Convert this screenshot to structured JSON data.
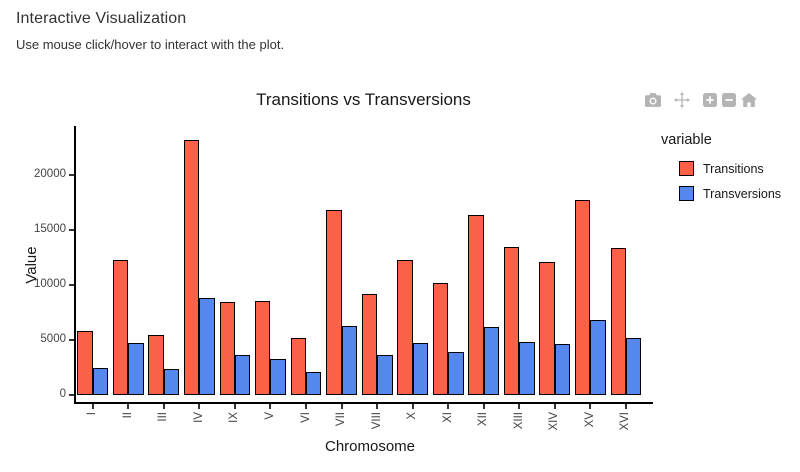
{
  "page": {
    "title": "Interactive Visualization",
    "subtitle": "Use mouse click/hover to interact with the plot."
  },
  "toolbar": {
    "buttons": [
      {
        "icon": "camera-icon",
        "action": "download-plot-as-png"
      },
      {
        "icon": "pan-icon",
        "action": "pan"
      },
      {
        "icon": "zoom-in-icon",
        "action": "zoom-in"
      },
      {
        "icon": "zoom-out-icon",
        "action": "zoom-out"
      },
      {
        "icon": "home-icon",
        "action": "reset-axes"
      }
    ]
  },
  "chart_data": {
    "type": "bar",
    "title": "Transitions vs Transversions",
    "xlabel": "Chromosome",
    "ylabel": "Value",
    "legend_title": "variable",
    "legend_position": "right",
    "grid": false,
    "bar_border_color": "#000000",
    "categories": [
      "I",
      "II",
      "III",
      "IV",
      "IX",
      "V",
      "VI",
      "VII",
      "VIII",
      "X",
      "XI",
      "XII",
      "XIII",
      "XIV",
      "XV",
      "XVI"
    ],
    "series": [
      {
        "name": "Transitions",
        "color": "#FB6147",
        "values": [
          5800,
          12250,
          5450,
          23200,
          8450,
          8550,
          5200,
          16800,
          9150,
          12250,
          10150,
          16400,
          13450,
          12100,
          17700,
          13400
        ]
      },
      {
        "name": "Transversions",
        "color": "#5588EC",
        "values": [
          2450,
          4700,
          2350,
          8800,
          3600,
          3250,
          2100,
          6250,
          3600,
          4700,
          3900,
          6200,
          4850,
          4650,
          6800,
          5200
        ]
      }
    ],
    "ylim": [
      0,
      23500
    ],
    "yticks": [
      0,
      5000,
      10000,
      15000,
      20000
    ]
  }
}
